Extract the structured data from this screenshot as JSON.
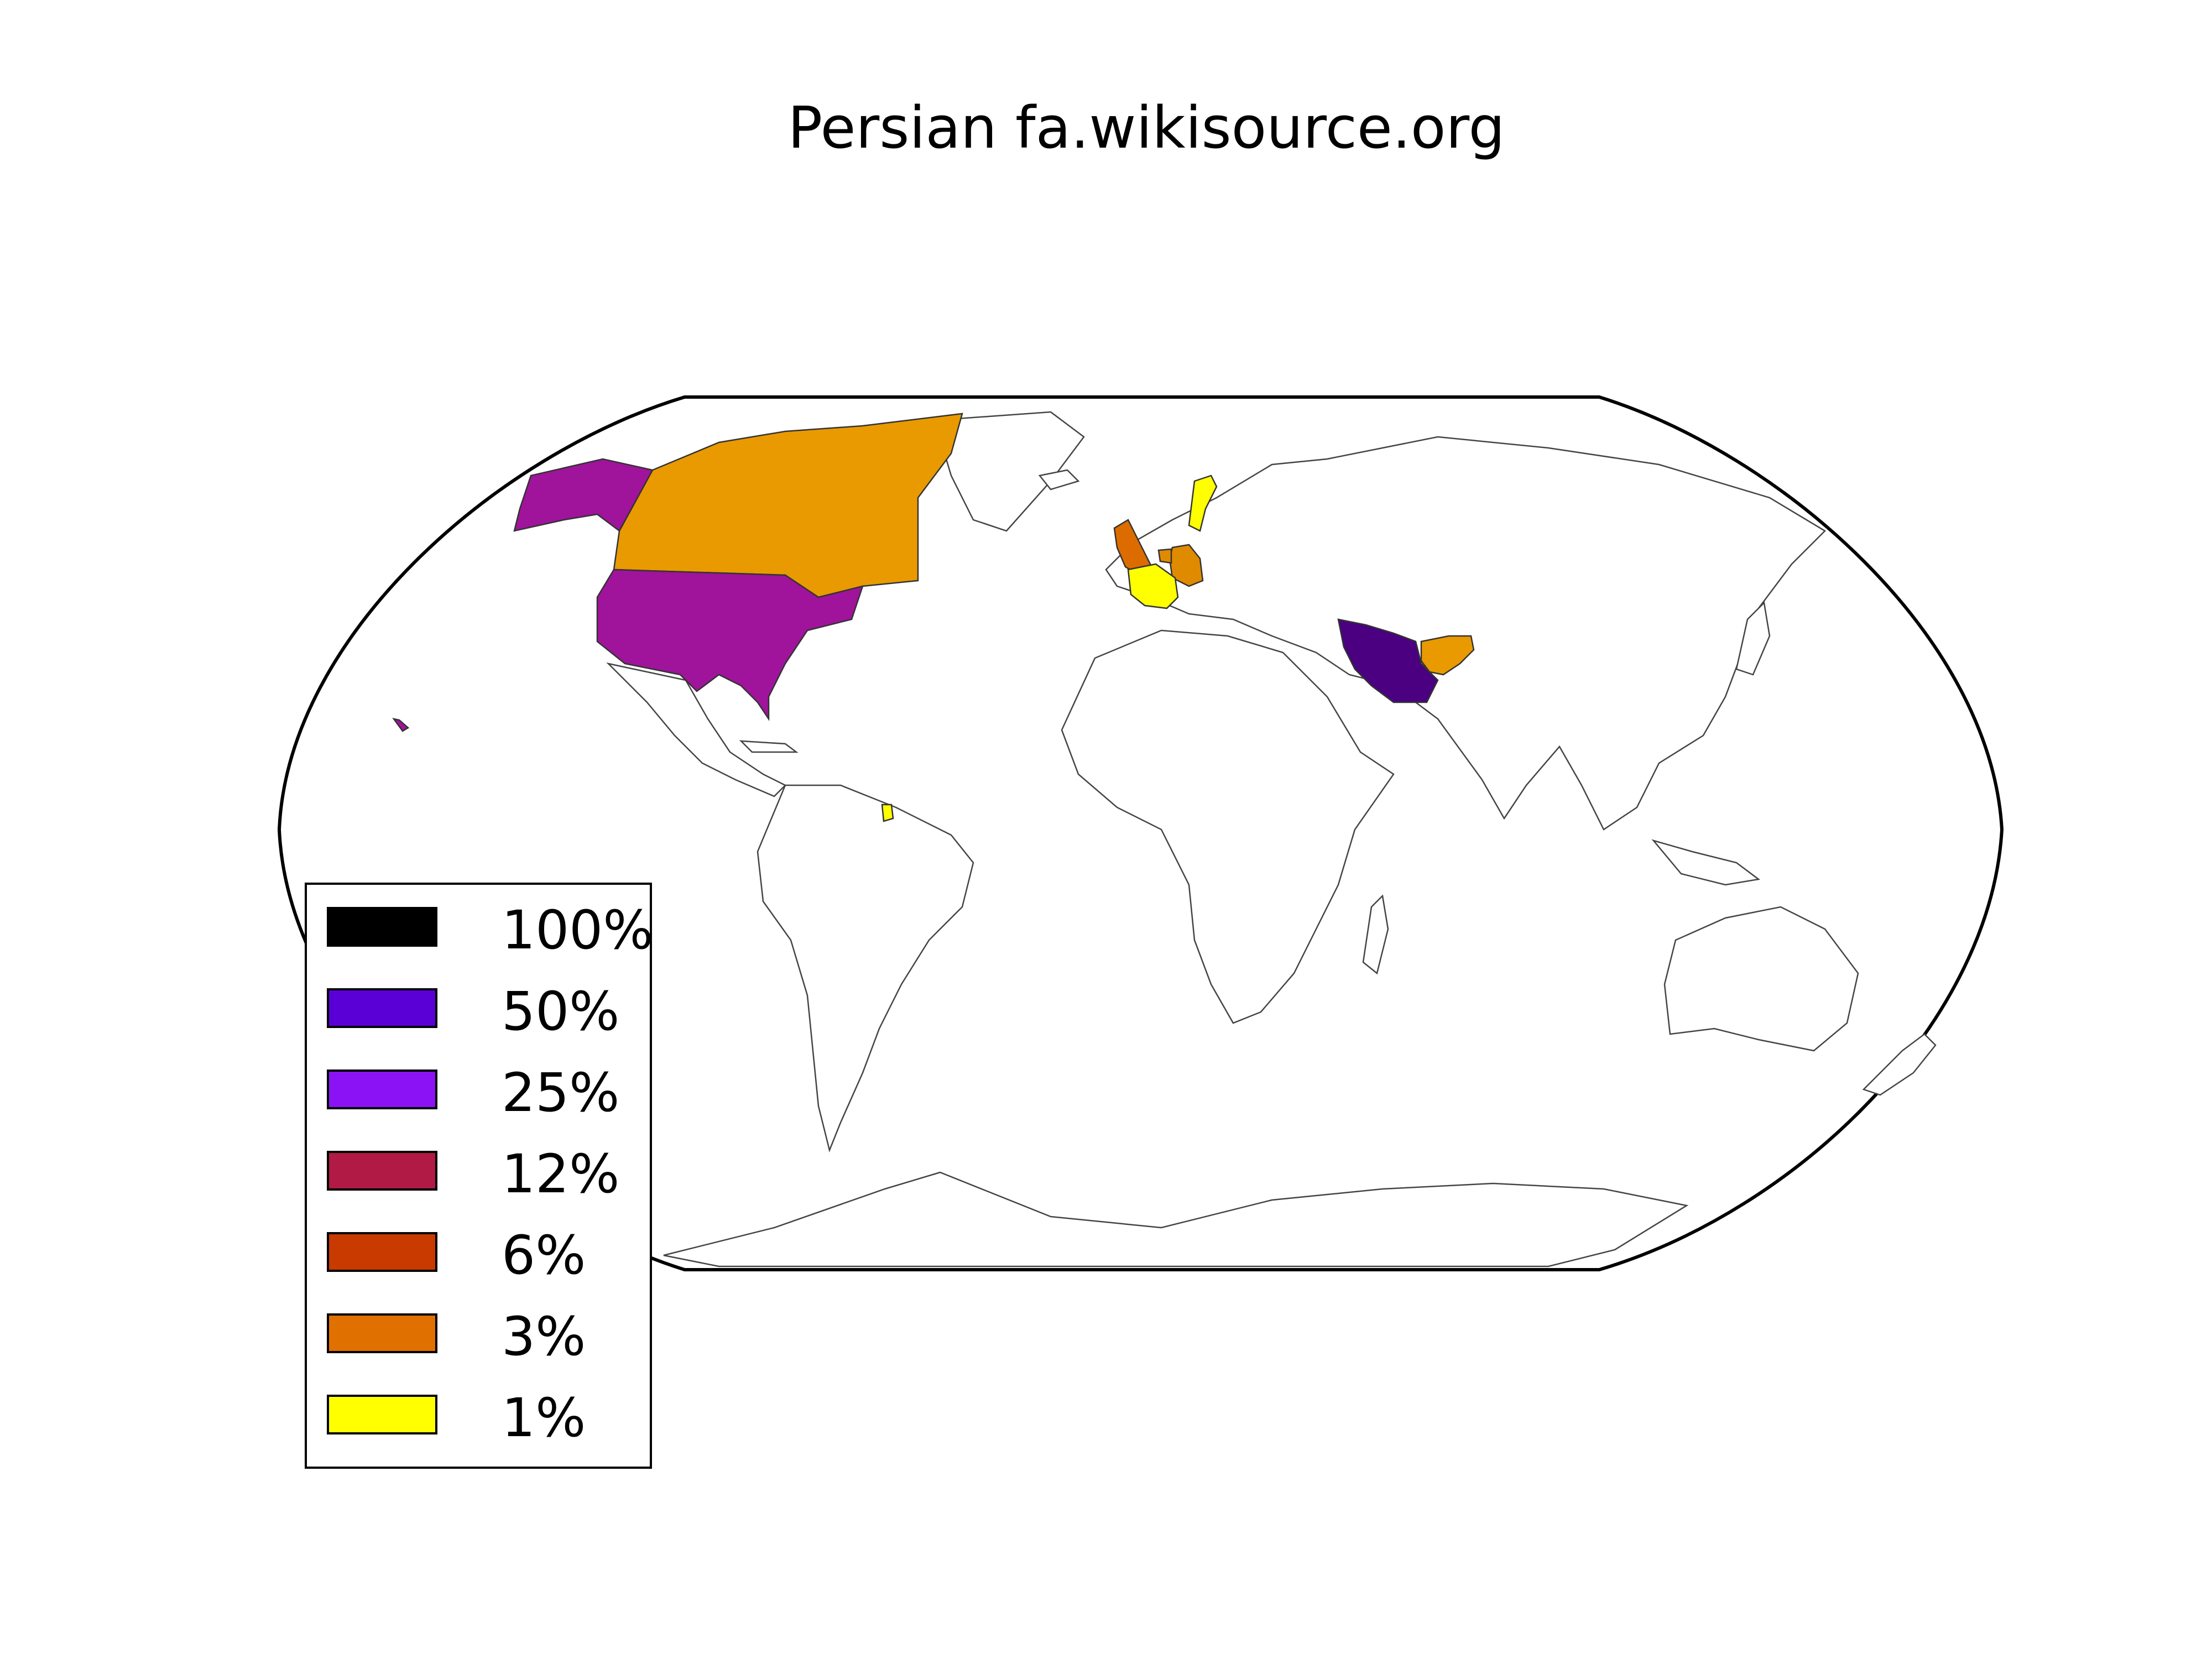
{
  "title": "Persian fa.wikisource.org",
  "legend": [
    {
      "label": "100%",
      "color": "#000000"
    },
    {
      "label": "50%",
      "color": "#5a00d6"
    },
    {
      "label": "25%",
      "color": "#8a12f5"
    },
    {
      "label": "12%",
      "color": "#b01a45"
    },
    {
      "label": "6%",
      "color": "#c83a00"
    },
    {
      "label": "3%",
      "color": "#e07000"
    },
    {
      "label": "1%",
      "color": "#ffff00"
    }
  ],
  "countries": [
    {
      "name": "Iran",
      "color": "#4b0082"
    },
    {
      "name": "United States",
      "color": "#a0139b"
    },
    {
      "name": "Canada",
      "color": "#e99a00"
    },
    {
      "name": "Afghanistan",
      "color": "#e99a00"
    },
    {
      "name": "Germany",
      "color": "#e08a00"
    },
    {
      "name": "United Kingdom",
      "color": "#dd6c00"
    },
    {
      "name": "France",
      "color": "#ffff00"
    },
    {
      "name": "Sweden",
      "color": "#ffff00"
    },
    {
      "name": "French Guiana",
      "color": "#ffff00"
    }
  ]
}
